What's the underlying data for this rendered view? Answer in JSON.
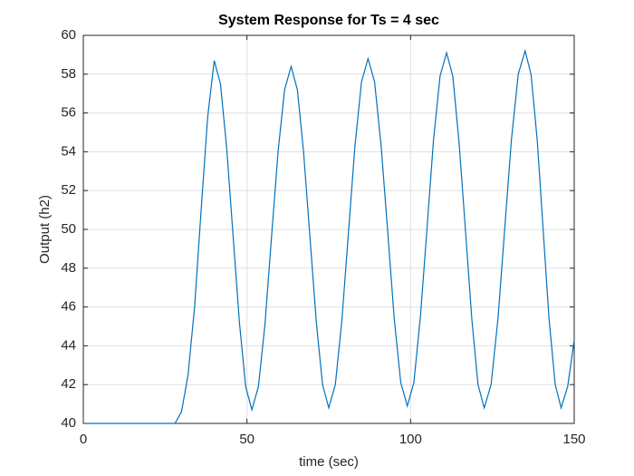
{
  "chart_data": {
    "type": "line",
    "title": "System Response for Ts = 4 sec",
    "x_label": "time (sec)",
    "y_label": "Output (h2)",
    "xlim": [
      0,
      150
    ],
    "xticks": [
      0,
      50,
      100,
      150
    ],
    "ylim": [
      40,
      60
    ],
    "yticks": [
      40,
      42,
      44,
      46,
      48,
      50,
      52,
      54,
      56,
      58,
      60
    ],
    "grid": true,
    "series": [
      {
        "color": "#0072bd",
        "x": [
          0,
          28,
          30,
          32,
          34,
          36,
          38,
          40,
          41.9,
          43.8,
          45.75,
          47.7,
          49.6,
          51.5,
          53.5,
          55.5,
          57.5,
          59.5,
          61.5,
          63.5,
          65.4,
          67.3,
          69.25,
          71.2,
          73.1,
          75,
          77,
          79,
          81,
          83,
          85,
          87,
          89,
          91,
          93,
          95,
          97,
          99,
          101,
          103,
          105,
          107,
          109,
          111,
          112.9,
          114.8,
          116.75,
          118.7,
          120.6,
          122.5,
          124.6,
          126.7,
          128.75,
          130.8,
          132.9,
          135,
          136.8,
          138.7,
          140.5,
          142.3,
          144.2,
          146,
          148,
          150
        ],
        "values": [
          40,
          40,
          40.6,
          42.5,
          46,
          51,
          55.8,
          58.7,
          57.5,
          54.2,
          49.7,
          45.2,
          41.9,
          40.7,
          41.9,
          45.1,
          49.6,
          54.0,
          57.2,
          58.4,
          57.2,
          54.0,
          49.6,
          45.2,
          42.0,
          40.8,
          42.0,
          45.3,
          49.8,
          54.3,
          57.6,
          58.8,
          57.6,
          54.3,
          49.9,
          45.4,
          42.1,
          40.9,
          42.1,
          45.5,
          50,
          54.6,
          57.9,
          59.1,
          57.9,
          54.5,
          50,
          45.4,
          42.0,
          40.8,
          42.0,
          45.4,
          50,
          54.6,
          58.0,
          59.2,
          58.0,
          54.6,
          50,
          45.4,
          42.0,
          40.8,
          41.9,
          44.3
        ]
      }
    ]
  }
}
